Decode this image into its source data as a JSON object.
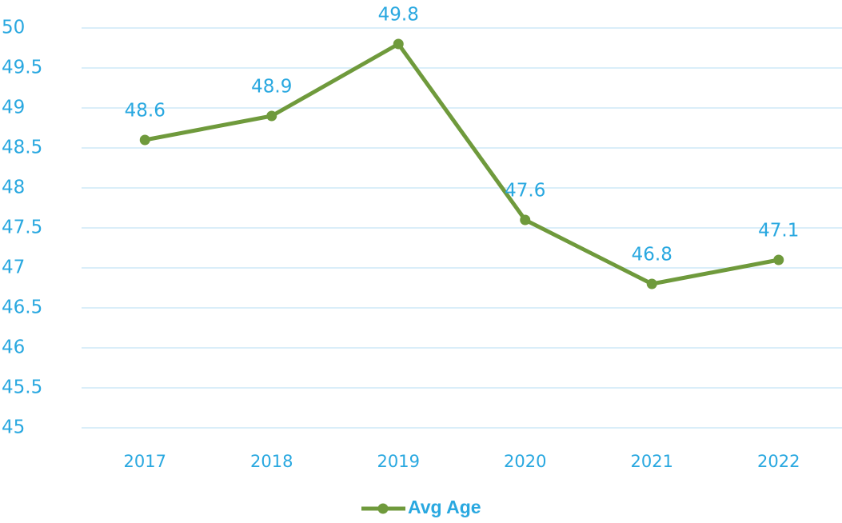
{
  "chart_data": {
    "type": "line",
    "categories": [
      "2017",
      "2018",
      "2019",
      "2020",
      "2021",
      "2022"
    ],
    "series": [
      {
        "name": "Avg Age",
        "color": "#6f9a3c",
        "values": [
          48.6,
          48.9,
          49.8,
          47.6,
          46.8,
          47.1
        ]
      }
    ],
    "ylim": [
      45,
      50
    ],
    "yticks": [
      45,
      45.5,
      46,
      46.5,
      47,
      47.5,
      48,
      48.5,
      49,
      49.5,
      50
    ],
    "grid": true,
    "legend": "bottom"
  }
}
